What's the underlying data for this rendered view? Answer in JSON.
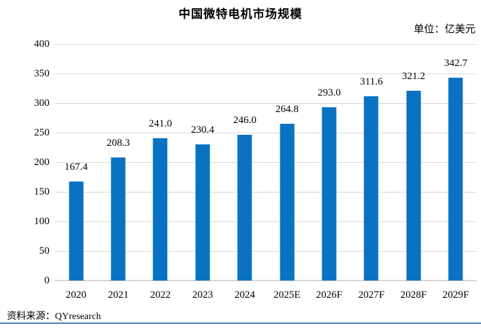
{
  "chart": {
    "title": "中国微特电机市场规模",
    "unit_label": "单位：亿美元",
    "source": "资料来源：QYresearch"
  },
  "chart_data": {
    "type": "bar",
    "title": "中国微特电机市场规模",
    "unit": "亿美元",
    "categories": [
      "2020",
      "2021",
      "2022",
      "2023",
      "2024",
      "2025E",
      "2026F",
      "2027F",
      "2028F",
      "2029F"
    ],
    "values": [
      167.4,
      208.3,
      241.0,
      230.4,
      246.0,
      264.8,
      293.0,
      311.6,
      321.2,
      342.7
    ],
    "value_label_decimals": 1,
    "xlabel": "",
    "ylabel": "",
    "ylim": [
      0,
      400
    ],
    "yticks": [
      0,
      50,
      100,
      150,
      200,
      250,
      300,
      350,
      400
    ],
    "grid": true,
    "legend": "none",
    "bar_color": "#0a72c2",
    "gridline_color": "#d9d9d9",
    "divider_color": "#4a7cba",
    "source": "QYresearch"
  }
}
